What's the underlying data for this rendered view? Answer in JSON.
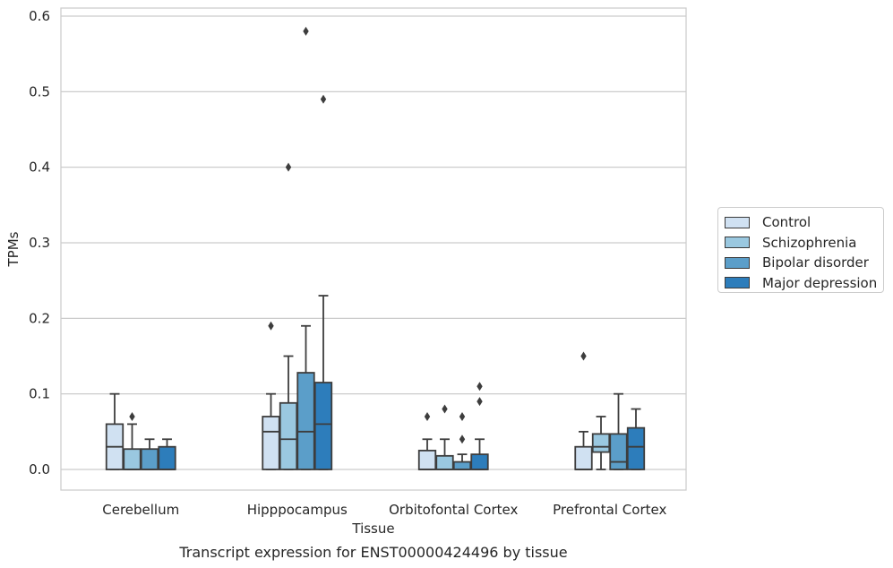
{
  "chart_data": {
    "type": "box",
    "title": "Transcript expression for ENST00000424496 by tissue",
    "xlabel": "Tissue",
    "ylabel": "TPMs",
    "ylim": [
      -0.028,
      0.612
    ],
    "yticks": [
      "0.0",
      "0.1",
      "0.2",
      "0.3",
      "0.4",
      "0.5",
      "0.6"
    ],
    "grid": "horizontal",
    "legend_position": "right",
    "categories": [
      "Cerebellum",
      "Hipppocampus",
      "Orbitofontal Cortex",
      "Prefrontal Cortex"
    ],
    "series": [
      {
        "name": "Control",
        "color": "#d0e1f2",
        "boxes": [
          {
            "q1": 0.0,
            "median": 0.03,
            "q3": 0.06,
            "whislo": 0.0,
            "whishi": 0.1,
            "fliers": []
          },
          {
            "q1": 0.0,
            "median": 0.05,
            "q3": 0.07,
            "whislo": 0.0,
            "whishi": 0.1,
            "fliers": [
              0.19
            ]
          },
          {
            "q1": 0.0,
            "median": 0.0,
            "q3": 0.025,
            "whislo": 0.0,
            "whishi": 0.04,
            "fliers": [
              0.07
            ]
          },
          {
            "q1": 0.0,
            "median": 0.0,
            "q3": 0.03,
            "whislo": 0.0,
            "whishi": 0.05,
            "fliers": [
              0.15
            ]
          }
        ]
      },
      {
        "name": "Schizophrenia",
        "color": "#9ac8e0",
        "boxes": [
          {
            "q1": 0.0,
            "median": 0.0,
            "q3": 0.027,
            "whislo": 0.0,
            "whishi": 0.06,
            "fliers": [
              0.07
            ]
          },
          {
            "q1": 0.0,
            "median": 0.04,
            "q3": 0.088,
            "whislo": 0.0,
            "whishi": 0.15,
            "fliers": [
              0.4
            ]
          },
          {
            "q1": 0.0,
            "median": 0.0,
            "q3": 0.018,
            "whislo": 0.0,
            "whishi": 0.04,
            "fliers": [
              0.08
            ]
          },
          {
            "q1": 0.023,
            "median": 0.03,
            "q3": 0.047,
            "whislo": 0.0,
            "whishi": 0.07,
            "fliers": []
          }
        ]
      },
      {
        "name": "Bipolar disorder",
        "color": "#5b9ec9",
        "boxes": [
          {
            "q1": 0.0,
            "median": 0.0,
            "q3": 0.027,
            "whislo": 0.0,
            "whishi": 0.04,
            "fliers": []
          },
          {
            "q1": 0.0,
            "median": 0.05,
            "q3": 0.128,
            "whislo": 0.0,
            "whishi": 0.19,
            "fliers": [
              0.58
            ]
          },
          {
            "q1": 0.0,
            "median": 0.0,
            "q3": 0.01,
            "whislo": 0.0,
            "whishi": 0.02,
            "fliers": [
              0.04,
              0.07
            ]
          },
          {
            "q1": 0.0,
            "median": 0.01,
            "q3": 0.047,
            "whislo": 0.0,
            "whishi": 0.1,
            "fliers": []
          }
        ]
      },
      {
        "name": "Major depression",
        "color": "#2d7dbb",
        "boxes": [
          {
            "q1": 0.0,
            "median": 0.0,
            "q3": 0.03,
            "whislo": 0.0,
            "whishi": 0.04,
            "fliers": []
          },
          {
            "q1": 0.0,
            "median": 0.06,
            "q3": 0.115,
            "whislo": 0.0,
            "whishi": 0.23,
            "fliers": [
              0.49
            ]
          },
          {
            "q1": 0.0,
            "median": 0.0,
            "q3": 0.02,
            "whislo": 0.0,
            "whishi": 0.04,
            "fliers": [
              0.09,
              0.11
            ]
          },
          {
            "q1": 0.0,
            "median": 0.03,
            "q3": 0.055,
            "whislo": 0.0,
            "whishi": 0.08,
            "fliers": []
          }
        ]
      }
    ]
  }
}
